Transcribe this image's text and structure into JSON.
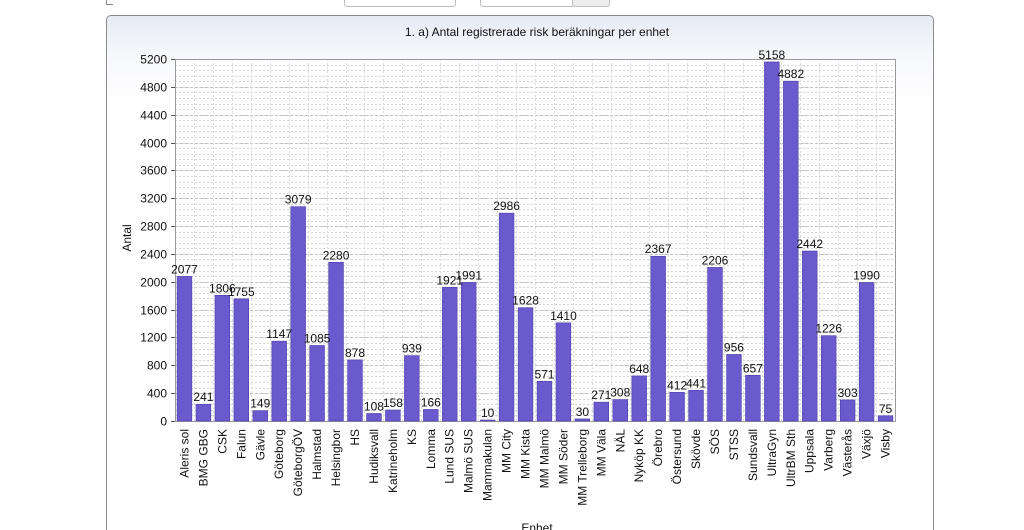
{
  "chart_data": {
    "type": "bar",
    "title": "1. a) Antal registrerade risk beräkningar per enhet",
    "xlabel": "Enhet",
    "ylabel": "Antal",
    "ylim": [
      0,
      5200
    ],
    "yticks": [
      0,
      400,
      800,
      1200,
      1600,
      2000,
      2400,
      2800,
      3200,
      3600,
      4000,
      4400,
      4800,
      5200
    ],
    "grid": true,
    "bar_color": "#6a5acd",
    "categories": [
      "Aleris sol",
      "BMG GBG",
      "CSK",
      "Falun",
      "Gävle",
      "Göteborg",
      "GöteborgÖV",
      "Halmstad",
      "Helsingbor",
      "HS",
      "Hudiksvall",
      "Katrineholm",
      "KS",
      "Lomma",
      "Lund SUS",
      "Malmö SUS",
      "Mammakulan",
      "MM City",
      "MM Kista",
      "MM Malmö",
      "MM Söder",
      "MM Trelleborg",
      "MM Väla",
      "NÄL",
      "Nyköp KK",
      "Örebro",
      "Östersund",
      "Skövde",
      "SÖS",
      "STSS",
      "Sundsvall",
      "UltraGyn",
      "UltrBM Sth",
      "Uppsala",
      "Varberg",
      "Västerås",
      "Växjö",
      "Visby"
    ],
    "values": [
      2077,
      241,
      1806,
      1755,
      149,
      1147,
      3079,
      1085,
      2280,
      878,
      108,
      158,
      939,
      166,
      1921,
      1991,
      10,
      2986,
      1628,
      571,
      1410,
      30,
      271,
      308,
      648,
      2367,
      412,
      441,
      2206,
      956,
      657,
      5158,
      4882,
      2442,
      1226,
      303,
      1990,
      75
    ],
    "value_labels": [
      "2077",
      "241",
      "1806",
      "1755",
      "149",
      "1147",
      "3079",
      "1085",
      "2280",
      "878",
      "108",
      "158",
      "939",
      "166",
      "1921",
      "1991",
      "10",
      "2986",
      "1628",
      "571",
      "1410",
      "30",
      "271",
      "308",
      "648",
      "2367",
      "412",
      "441",
      "2206",
      "956",
      "657",
      "5158",
      "4882",
      "2442",
      "1226",
      "303",
      "1990",
      "75"
    ]
  }
}
